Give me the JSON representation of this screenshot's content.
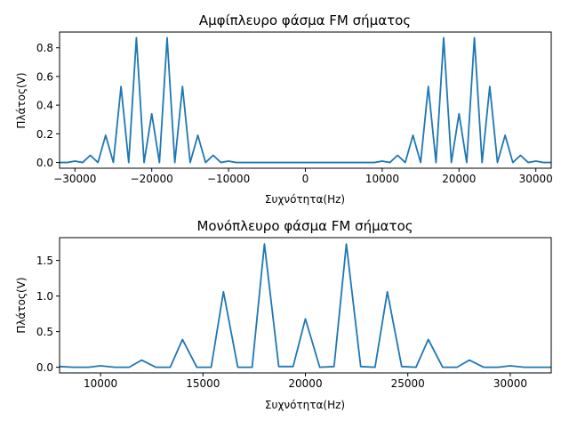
{
  "chart_data": [
    {
      "type": "line",
      "title": "Αμφίπλευρο φάσμα FM σήματος",
      "xlabel": "Συχνότητα(Hz)",
      "ylabel": "Πλάτος(V)",
      "xlim": [
        -32000,
        32000
      ],
      "ylim": [
        -0.04,
        0.91
      ],
      "xticks": [
        -30000,
        -20000,
        -10000,
        0,
        10000,
        20000,
        30000
      ],
      "xtick_labels": [
        "−30000",
        "−20000",
        "−10000",
        "0",
        "10000",
        "20000",
        "30000"
      ],
      "yticks": [
        0.0,
        0.2,
        0.4,
        0.6,
        0.8
      ],
      "ytick_labels": [
        "0.0",
        "0.2",
        "0.4",
        "0.6",
        "0.8"
      ],
      "grid": false,
      "color": "#1f77b4",
      "series": [
        {
          "x": [
            -32000,
            -31000,
            -30000,
            -29000,
            -28000,
            -27000,
            -26000,
            -25000,
            -24000,
            -23000,
            -22000,
            -21000,
            -20000,
            -19000,
            -18000,
            -17000,
            -16000,
            -15000,
            -14000,
            -13000,
            -12000,
            -11000,
            -10000,
            -9000,
            -8000,
            -7000,
            -6000,
            -5000,
            -4000,
            -3000,
            -2000,
            -1000,
            0,
            1000,
            2000,
            3000,
            4000,
            5000,
            6000,
            7000,
            8000,
            9000,
            10000,
            11000,
            12000,
            13000,
            14000,
            15000,
            16000,
            17000,
            18000,
            19000,
            20000,
            21000,
            22000,
            23000,
            24000,
            25000,
            26000,
            27000,
            28000,
            29000,
            30000,
            31000,
            32000
          ],
          "y": [
            0.0,
            0.0,
            0.01,
            0.0,
            0.05,
            0.0,
            0.19,
            0.0,
            0.53,
            0.0,
            0.87,
            0.0,
            0.34,
            0.0,
            0.87,
            0.0,
            0.53,
            0.0,
            0.19,
            0.0,
            0.05,
            0.0,
            0.01,
            0.0,
            0.0,
            0.0,
            0.0,
            0.0,
            0.0,
            0.0,
            0.0,
            0.0,
            0.0,
            0.0,
            0.0,
            0.0,
            0.0,
            0.0,
            0.0,
            0.0,
            0.0,
            0.0,
            0.01,
            0.0,
            0.05,
            0.0,
            0.19,
            0.0,
            0.53,
            0.0,
            0.87,
            0.0,
            0.34,
            0.0,
            0.87,
            0.0,
            0.53,
            0.0,
            0.19,
            0.0,
            0.05,
            0.0,
            0.01,
            0.0,
            0.0
          ]
        }
      ]
    },
    {
      "type": "line",
      "title": "Μονόπλευρο φάσμα FM σήματος",
      "xlabel": "Συχνότητα(Hz)",
      "ylabel": "Πλάτος(V)",
      "xlim": [
        8000,
        32000
      ],
      "ylim": [
        -0.08,
        1.82
      ],
      "xticks": [
        10000,
        15000,
        20000,
        25000,
        30000
      ],
      "xtick_labels": [
        "10000",
        "15000",
        "20000",
        "25000",
        "30000"
      ],
      "yticks": [
        0.0,
        0.5,
        1.0,
        1.5
      ],
      "ytick_labels": [
        "0.0",
        "0.5",
        "1.0",
        "1.5"
      ],
      "grid": false,
      "color": "#1f77b4",
      "series": [
        {
          "x": [
            8000,
            8700,
            9400,
            10000,
            10700,
            11400,
            12000,
            12700,
            13400,
            14000,
            14700,
            15400,
            16000,
            16700,
            17400,
            18000,
            18700,
            19400,
            20000,
            20700,
            21400,
            22000,
            22700,
            23400,
            24000,
            24700,
            25400,
            26000,
            26700,
            27400,
            28000,
            28700,
            29400,
            30000,
            30700,
            31400,
            32000
          ],
          "y": [
            0.01,
            0.0,
            0.0,
            0.02,
            0.0,
            0.0,
            0.1,
            0.0,
            0.0,
            0.39,
            0.0,
            0.0,
            1.06,
            0.0,
            0.0,
            1.73,
            0.01,
            0.01,
            0.68,
            0.0,
            0.01,
            1.73,
            0.01,
            0.0,
            1.06,
            0.01,
            0.0,
            0.39,
            0.0,
            0.0,
            0.1,
            0.0,
            0.0,
            0.02,
            0.0,
            0.0,
            0.0
          ]
        }
      ]
    }
  ]
}
